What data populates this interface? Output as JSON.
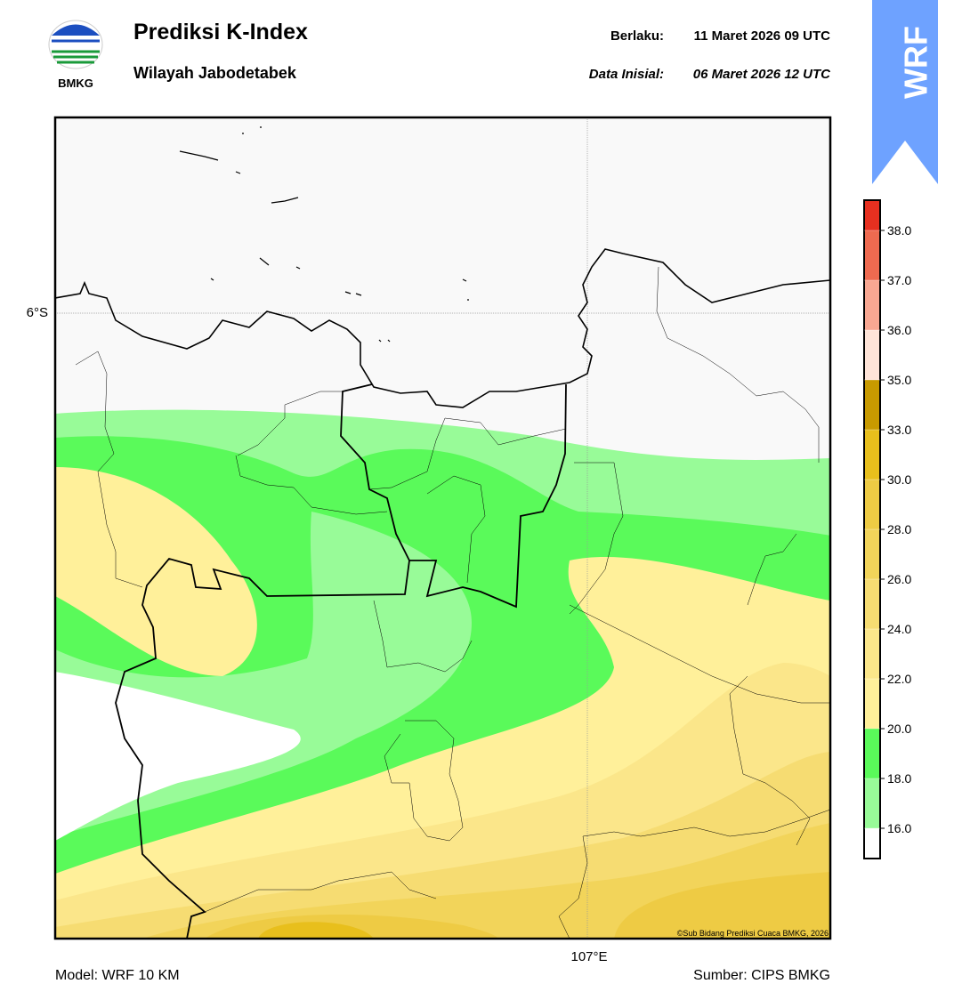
{
  "header": {
    "title": "Prediksi K-Index",
    "subtitle": "Wilayah Jabodetabek",
    "valid_label": "Berlaku:",
    "valid_time": "11 Maret 2026 09 UTC",
    "init_label": "Data Inisial:",
    "init_time": "06 Maret 2026 12 UTC",
    "logo_text": "BMKG",
    "badge": "WRF"
  },
  "map": {
    "lat_label": "6°S",
    "lon_label": "107°E",
    "copyright": "©Sub Bidang Prediksi Cuaca BMKG, 2026"
  },
  "colorbar": {
    "ticks": [
      {
        "value": 16,
        "label": "16.0"
      },
      {
        "value": 18,
        "label": "18.0"
      },
      {
        "value": 20,
        "label": "20.0"
      },
      {
        "value": 22,
        "label": "22.0"
      },
      {
        "value": 24,
        "label": "24.0"
      },
      {
        "value": 26,
        "label": "26.0"
      },
      {
        "value": 28,
        "label": "28.0"
      },
      {
        "value": 30,
        "label": "30.0"
      },
      {
        "value": 33,
        "label": "33.0"
      },
      {
        "value": 35,
        "label": "35.0"
      },
      {
        "value": 36,
        "label": "36.0"
      },
      {
        "value": 37,
        "label": "37.0"
      },
      {
        "value": 38,
        "label": "38.0"
      }
    ],
    "colors": [
      "#ffffff",
      "#98fb98",
      "#5afa5a",
      "#fff09a",
      "#fbe68a",
      "#f6dc72",
      "#f2d45a",
      "#eecb44",
      "#e8bf1c",
      "#c89a00",
      "#ffe4d8",
      "#f8a792",
      "#ee6a50",
      "#e63020"
    ]
  },
  "footer": {
    "model": "Model: WRF 10 KM",
    "source": "Sumber: CIPS BMKG"
  }
}
